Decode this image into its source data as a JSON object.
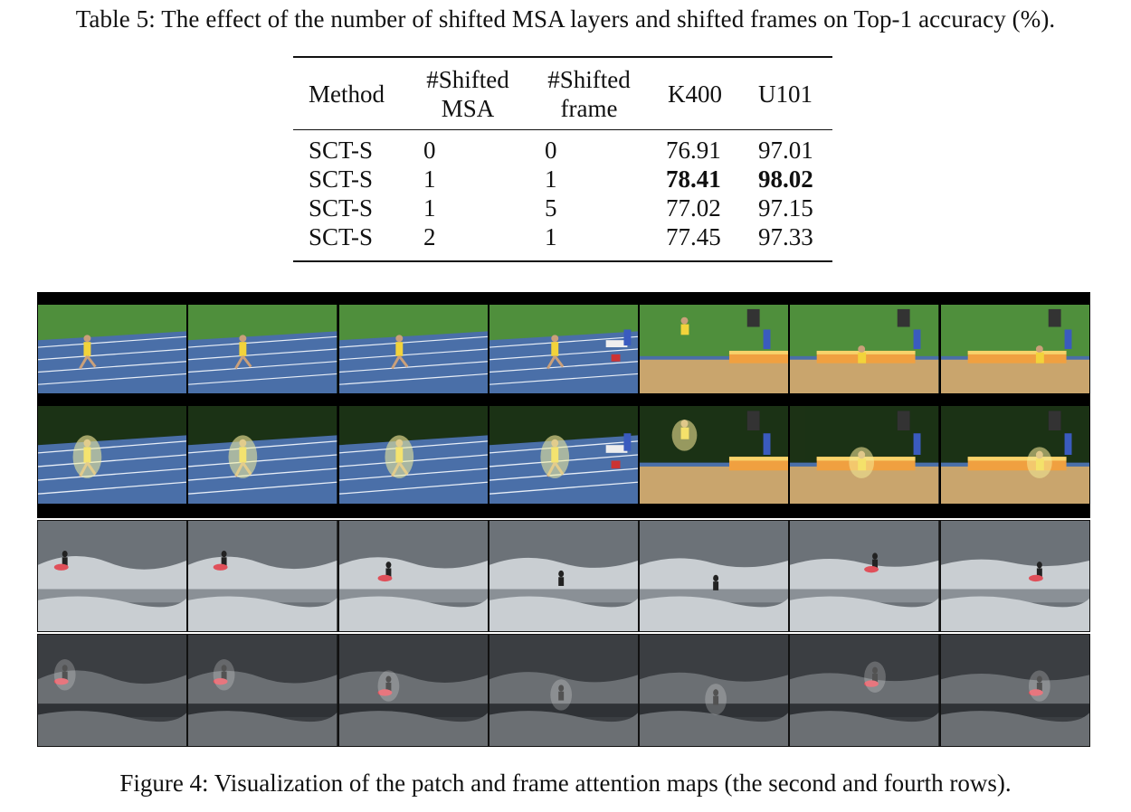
{
  "table": {
    "caption": "Table 5: The effect of the number of shifted MSA layers and shifted frames on Top-1 accuracy (%).",
    "headers": {
      "method": "Method",
      "shifted_msa_line1": "#Shifted",
      "shifted_msa_line2": "MSA",
      "shifted_frame_line1": "#Shifted",
      "shifted_frame_line2": "frame",
      "k400": "K400",
      "u101": "U101"
    },
    "rows": [
      {
        "method": "SCT-S",
        "msa": "0",
        "frame": "0",
        "k400": "76.91",
        "u101": "97.01"
      },
      {
        "method": "SCT-S",
        "msa": "1",
        "frame": "1",
        "k400": "78.41",
        "u101": "98.02"
      },
      {
        "method": "SCT-S",
        "msa": "1",
        "frame": "5",
        "k400": "77.02",
        "u101": "97.15"
      },
      {
        "method": "SCT-S",
        "msa": "2",
        "frame": "1",
        "k400": "77.45",
        "u101": "97.33"
      }
    ],
    "bold_row_index": 1
  },
  "figure": {
    "caption": "Figure 4: Visualization of the patch and frame attention maps (the second and fourth rows).",
    "rows": [
      {
        "scene": "athletics",
        "type": "frames"
      },
      {
        "scene": "athletics",
        "type": "attention-map"
      },
      {
        "scene": "surfing",
        "type": "frames"
      },
      {
        "scene": "surfing",
        "type": "attention-map"
      }
    ],
    "frames_per_row": 7,
    "colors": {
      "grass": "#4f8f3c",
      "track": "#4a6fa8",
      "sand": "#c9a56d",
      "wave": "#c9ced2",
      "sea": "#6c7278",
      "highlight": "#e0505a"
    }
  }
}
